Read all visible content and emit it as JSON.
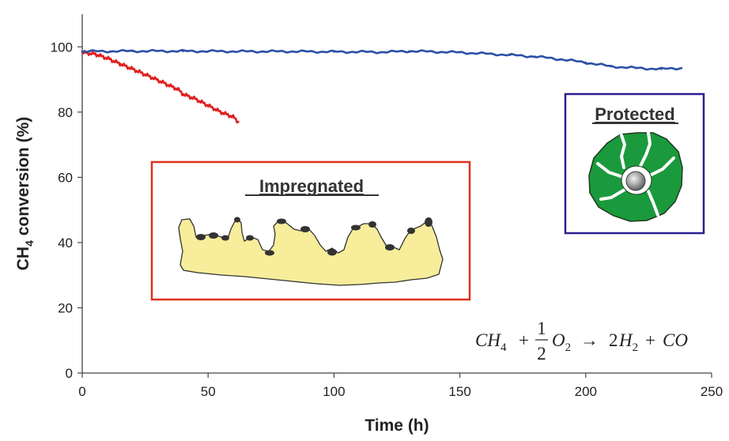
{
  "chart_data": {
    "type": "line",
    "title": "",
    "xlabel": "Time (h)",
    "ylabel_main": "CH",
    "ylabel_sub": "4",
    "ylabel_rest": " conversion (%)",
    "xlim": [
      0,
      250
    ],
    "ylim": [
      0,
      110
    ],
    "xticks": [
      "0",
      "50",
      "100",
      "150",
      "200",
      "250"
    ],
    "yticks": [
      "0",
      "20",
      "40",
      "60",
      "80",
      "100"
    ],
    "grid": false,
    "series": [
      {
        "color": "#e02020",
        "x": [
          0,
          5,
          10,
          15,
          20,
          25,
          30,
          35,
          38,
          40,
          45,
          50,
          55,
          60,
          62
        ],
        "y": [
          98.3,
          97.8,
          96.5,
          94.8,
          93.2,
          91.5,
          89.8,
          88.0,
          87.0,
          85.5,
          84.0,
          82.0,
          80.0,
          78.5,
          77.0
        ]
      },
      {
        "color": "#2b4fa8",
        "x": [
          0,
          20,
          40,
          60,
          80,
          100,
          120,
          130,
          150,
          170,
          180,
          190,
          200,
          210,
          220,
          230,
          238
        ],
        "y": [
          98.6,
          98.7,
          98.7,
          98.6,
          98.6,
          98.5,
          98.4,
          98.7,
          98.3,
          97.5,
          97.0,
          96.2,
          95.2,
          94.0,
          93.5,
          93.2,
          93.5
        ]
      }
    ]
  },
  "insets": {
    "impregnated_title": "Impregnated",
    "protected_title": "Protected",
    "impregnated_border": "#e0301e",
    "protected_border": "#2a1f8f",
    "support_fill": "#f7ed9b",
    "particle_color": "#333333",
    "shell_color": "#1a9a3c"
  },
  "equation": {
    "lhs_main": "CH",
    "lhs_sub": "4",
    "plus1": "+",
    "frac_num": "1",
    "frac_den": "2",
    "o_main": "O",
    "o_sub": "2",
    "arrow": "→",
    "coef": "2",
    "h_main": "H",
    "h_sub": "2",
    "plus2": "+",
    "co": "CO"
  }
}
